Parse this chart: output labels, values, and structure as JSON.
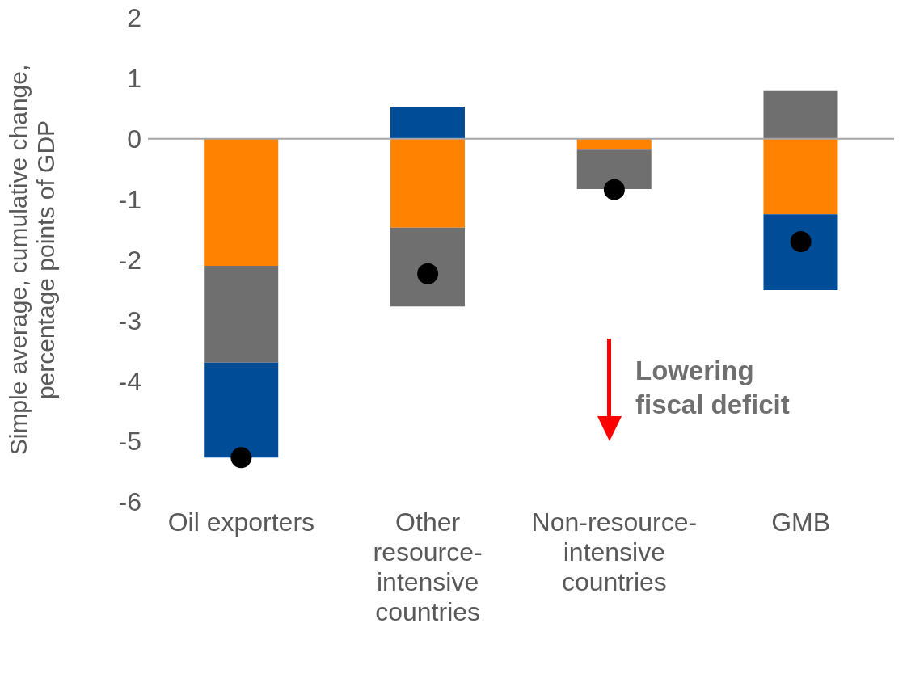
{
  "chart_data": {
    "type": "bar",
    "stacked": true,
    "categories": [
      "Oil exporters",
      "Other resource-intensive countries",
      "Non-resource-intensive countries",
      "GMB"
    ],
    "ylabel": "Simple average, cumulative change, percentage points of GDP",
    "ylim": [
      -6,
      2
    ],
    "yticks": [
      -6,
      -5,
      -4,
      -3,
      -2,
      -1,
      0,
      1,
      2
    ],
    "series": [
      {
        "color": "#ff8200",
        "values": [
          -2.1,
          -1.47,
          -0.18,
          -1.25
        ]
      },
      {
        "color": "#6f6f6f",
        "values": [
          -1.6,
          -1.3,
          -0.65,
          0.8
        ]
      },
      {
        "color": "#004c97",
        "values": [
          -1.57,
          0.53,
          null,
          -1.25
        ]
      },
      {
        "type": "scatter",
        "marker": "circle",
        "color": "#000000",
        "x": [
          "Oil exporters",
          "Other resource-intensive countries",
          "Non-resource-intensive countries",
          "GMB"
        ],
        "values": [
          -5.27,
          -2.23,
          -0.84,
          -1.7
        ]
      }
    ],
    "ref_lines": [
      {
        "axis": "y",
        "value": 0,
        "color": "#a6a6a6"
      }
    ],
    "annotations": [
      "Lowering fiscal deficit"
    ]
  }
}
